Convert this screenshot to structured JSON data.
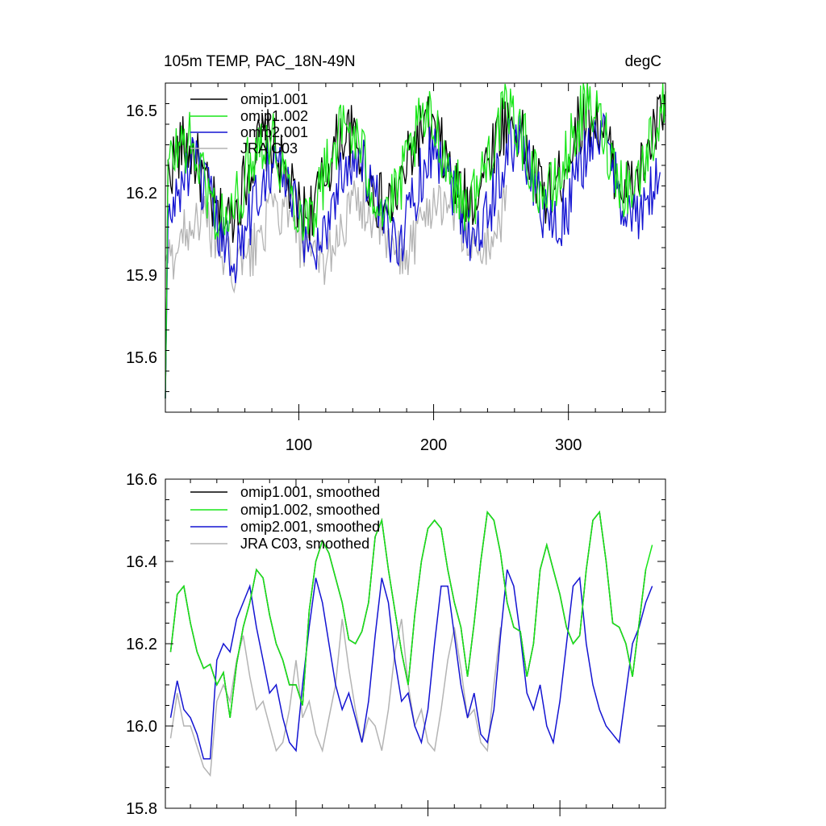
{
  "header": {
    "title_left": "105m TEMP, PAC_18N-49N",
    "title_right": "degC"
  },
  "colors": {
    "omip1_001": "#000000",
    "omip1_002": "#19e619",
    "omip2_001": "#1414d2",
    "jra_c03": "#b4b4b4"
  },
  "chart_data": [
    {
      "type": "line",
      "title": "105m TEMP, PAC_18N-49N",
      "units": "degC",
      "xlim": [
        1,
        372
      ],
      "ylim": [
        15.4,
        16.6
      ],
      "x_ticks": [
        100,
        200,
        300
      ],
      "x_tick_labels": [
        "100",
        "200",
        "300"
      ],
      "y_ticks": [
        15.6,
        15.9,
        16.2,
        16.5
      ],
      "y_tick_labels": [
        "15.6",
        "15.9",
        "16.2",
        "16.5"
      ],
      "legend": [
        "omip1.001",
        "omip1.002",
        "omip2.001",
        "JRA C03"
      ],
      "legend_position": "top-left",
      "series_description": "monthly values, approx. 370 months",
      "series": [
        {
          "name": "omip1.001",
          "color_key": "omip1_001",
          "base": 16.22,
          "amp": 0.14,
          "noise": 0.12,
          "phase": 0.0,
          "start": 15.45,
          "endx": 372
        },
        {
          "name": "omip1.002",
          "color_key": "omip1_002",
          "base": 16.23,
          "amp": 0.15,
          "noise": 0.12,
          "phase": 0.0,
          "start": 15.45,
          "endx": 372
        },
        {
          "name": "omip2.001",
          "color_key": "omip2_001",
          "base": 16.12,
          "amp": 0.16,
          "noise": 0.12,
          "phase": -0.6,
          "start": 15.45,
          "endx": 368
        },
        {
          "name": "JRA C03",
          "color_key": "jra_c03",
          "base": 16.0,
          "amp": 0.1,
          "noise": 0.1,
          "phase": -1.0,
          "start": 15.95,
          "endx": 254
        }
      ]
    },
    {
      "type": "line",
      "xlim": [
        1,
        380
      ],
      "ylim": [
        15.8,
        16.6
      ],
      "x_ticks": [
        100,
        200,
        300
      ],
      "y_ticks": [
        15.8,
        16.0,
        16.2,
        16.4,
        16.6
      ],
      "y_tick_labels": [
        "15.8",
        "16.0",
        "16.2",
        "16.4",
        "16.6"
      ],
      "legend": [
        "omip1.001, smoothed",
        "omip1.002, smoothed",
        "omip2.001, smoothed",
        "JRA C03, smoothed"
      ],
      "legend_position": "top-left",
      "series": [
        {
          "name": "omip1.001, smoothed",
          "color_key": "omip1_001",
          "x": [
            5,
            10,
            15,
            20,
            25,
            30,
            35,
            40,
            45,
            50,
            55,
            60,
            65,
            70,
            75,
            80,
            85,
            90,
            95,
            100,
            105,
            110,
            115,
            120,
            125,
            130,
            135,
            140,
            145,
            150,
            155,
            160,
            165,
            170,
            175,
            180,
            185,
            190,
            195,
            200,
            205,
            210,
            215,
            220,
            225,
            230,
            235,
            240,
            245,
            250,
            255,
            260,
            265,
            270,
            275,
            280,
            285,
            290,
            295,
            300,
            305,
            310,
            315,
            320,
            325,
            330,
            335,
            340,
            345,
            350,
            355,
            360,
            365
          ],
          "y": [
            16.18,
            16.32,
            16.34,
            16.25,
            16.18,
            16.14,
            16.15,
            16.1,
            16.13,
            16.02,
            16.15,
            16.24,
            16.3,
            16.38,
            16.36,
            16.27,
            16.2,
            16.16,
            16.1,
            16.1,
            16.05,
            16.28,
            16.4,
            16.45,
            16.42,
            16.36,
            16.3,
            16.21,
            16.2,
            16.23,
            16.3,
            16.46,
            16.5,
            16.38,
            16.28,
            16.18,
            16.1,
            16.27,
            16.4,
            16.48,
            16.5,
            16.48,
            16.38,
            16.3,
            16.24,
            16.12,
            16.25,
            16.4,
            16.52,
            16.5,
            16.42,
            16.3,
            16.24,
            16.23,
            16.12,
            16.2,
            16.38,
            16.44,
            16.38,
            16.32,
            16.24,
            16.2,
            16.22,
            16.38,
            16.5,
            16.52,
            16.4,
            16.25,
            16.24,
            16.2,
            16.12,
            16.25,
            16.38
          ]
        },
        {
          "name": "omip1.002, smoothed",
          "color_key": "omip1_002",
          "x": [
            5,
            10,
            15,
            20,
            25,
            30,
            35,
            40,
            45,
            50,
            55,
            60,
            65,
            70,
            75,
            80,
            85,
            90,
            95,
            100,
            105,
            110,
            115,
            120,
            125,
            130,
            135,
            140,
            145,
            150,
            155,
            160,
            165,
            170,
            175,
            180,
            185,
            190,
            195,
            200,
            205,
            210,
            215,
            220,
            225,
            230,
            235,
            240,
            245,
            250,
            255,
            260,
            265,
            270,
            275,
            280,
            285,
            290,
            295,
            300,
            305,
            310,
            315,
            320,
            325,
            330,
            335,
            340,
            345,
            350,
            355,
            360,
            365,
            370
          ],
          "y": [
            16.18,
            16.32,
            16.34,
            16.25,
            16.18,
            16.14,
            16.15,
            16.1,
            16.13,
            16.02,
            16.15,
            16.24,
            16.3,
            16.38,
            16.36,
            16.27,
            16.2,
            16.16,
            16.1,
            16.1,
            16.05,
            16.28,
            16.4,
            16.45,
            16.42,
            16.36,
            16.3,
            16.21,
            16.2,
            16.23,
            16.3,
            16.46,
            16.5,
            16.38,
            16.28,
            16.18,
            16.1,
            16.27,
            16.4,
            16.48,
            16.5,
            16.48,
            16.38,
            16.3,
            16.24,
            16.12,
            16.25,
            16.4,
            16.52,
            16.5,
            16.42,
            16.3,
            16.24,
            16.23,
            16.12,
            16.2,
            16.38,
            16.44,
            16.38,
            16.32,
            16.24,
            16.2,
            16.22,
            16.38,
            16.5,
            16.52,
            16.4,
            16.25,
            16.24,
            16.2,
            16.12,
            16.25,
            16.38,
            16.44
          ]
        },
        {
          "name": "omip2.001, smoothed",
          "color_key": "omip2_001",
          "x": [
            5,
            10,
            15,
            20,
            25,
            30,
            35,
            40,
            45,
            50,
            55,
            60,
            65,
            70,
            75,
            80,
            85,
            90,
            95,
            100,
            105,
            110,
            115,
            120,
            125,
            130,
            135,
            140,
            145,
            150,
            155,
            160,
            165,
            170,
            175,
            180,
            185,
            190,
            195,
            200,
            205,
            210,
            215,
            220,
            225,
            230,
            235,
            240,
            245,
            250,
            255,
            260,
            265,
            270,
            275,
            280,
            285,
            290,
            295,
            300,
            305,
            310,
            315,
            320,
            325,
            330,
            335,
            340,
            345,
            350,
            355,
            360,
            365,
            370
          ],
          "y": [
            16.02,
            16.11,
            16.04,
            16.02,
            15.98,
            15.92,
            15.92,
            16.16,
            16.2,
            16.18,
            16.26,
            16.3,
            16.34,
            16.24,
            16.16,
            16.08,
            16.1,
            16.02,
            15.96,
            15.94,
            16.1,
            16.24,
            16.36,
            16.3,
            16.2,
            16.1,
            16.04,
            16.08,
            16.02,
            15.96,
            16.06,
            16.22,
            16.36,
            16.3,
            16.16,
            16.06,
            16.08,
            16.0,
            15.96,
            16.04,
            16.2,
            16.34,
            16.34,
            16.22,
            16.1,
            16.02,
            16.08,
            15.98,
            15.96,
            16.04,
            16.22,
            16.38,
            16.34,
            16.22,
            16.08,
            16.04,
            16.1,
            16.0,
            15.96,
            16.06,
            16.2,
            16.34,
            16.36,
            16.2,
            16.1,
            16.04,
            16.0,
            15.98,
            15.96,
            16.08,
            16.2,
            16.24,
            16.3,
            16.34
          ]
        },
        {
          "name": "JRA C03, smoothed",
          "color_key": "jra_c03",
          "x": [
            5,
            10,
            15,
            20,
            25,
            30,
            35,
            40,
            45,
            50,
            55,
            60,
            65,
            70,
            75,
            80,
            85,
            90,
            95,
            100,
            105,
            110,
            115,
            120,
            125,
            130,
            135,
            140,
            145,
            150,
            155,
            160,
            165,
            170,
            175,
            180,
            185,
            190,
            195,
            200,
            205,
            210,
            215,
            220,
            225,
            230,
            235,
            240,
            245,
            250,
            255
          ],
          "y": [
            15.97,
            16.08,
            16.0,
            16.0,
            15.95,
            15.9,
            15.88,
            16.06,
            16.1,
            16.06,
            16.16,
            16.22,
            16.12,
            16.04,
            16.06,
            16.0,
            15.94,
            15.96,
            16.04,
            16.16,
            16.02,
            16.06,
            15.98,
            15.94,
            16.02,
            16.1,
            16.26,
            16.14,
            16.04,
            15.96,
            16.02,
            16.0,
            15.94,
            16.04,
            16.18,
            16.26,
            16.1,
            16.0,
            16.04,
            15.96,
            15.94,
            16.04,
            16.16,
            16.24,
            16.14,
            16.02,
            16.04,
            15.96,
            15.94,
            16.1,
            16.24
          ]
        }
      ]
    }
  ]
}
